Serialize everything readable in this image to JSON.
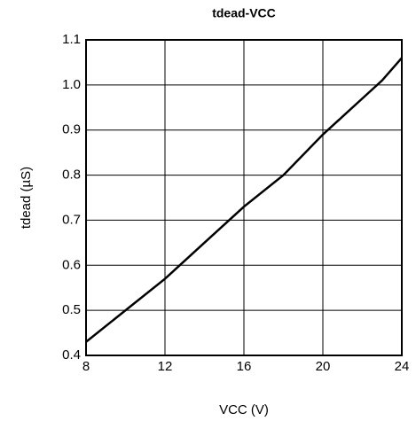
{
  "chart_data": {
    "type": "line",
    "title": "tdead-VCC",
    "xlabel": "VCC (V)",
    "ylabel": "tdead (µS)",
    "x": [
      8,
      10,
      12,
      14,
      16,
      18,
      20,
      22,
      23,
      24
    ],
    "series": [
      {
        "color": "#000000",
        "values": [
          0.43,
          0.5,
          0.57,
          0.65,
          0.73,
          0.8,
          0.89,
          0.97,
          1.01,
          1.06
        ]
      }
    ],
    "xlim": [
      8,
      24
    ],
    "xticks": [
      8,
      12,
      16,
      20,
      24
    ],
    "ylim": [
      0.4,
      1.1
    ],
    "yticks": [
      0.4,
      0.5,
      0.6,
      0.7,
      0.8,
      0.9,
      {
        "value": 1,
        "label": "1.0"
      },
      1.1
    ],
    "grid": true
  }
}
